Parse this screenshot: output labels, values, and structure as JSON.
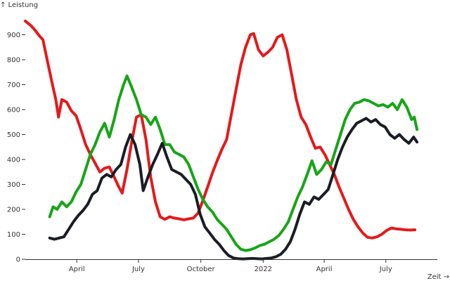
{
  "chart_data": {
    "type": "line",
    "title": "",
    "xlabel": "Zeit →",
    "ylabel": "↑ Leistung",
    "ylim": [
      0,
      1000
    ],
    "xlim": [
      "2021-01-15",
      "2022-09-15"
    ],
    "yticks": [
      0,
      100,
      200,
      300,
      400,
      500,
      600,
      700,
      800,
      900
    ],
    "xticks": [
      {
        "date": "2021-04-01",
        "label": "April"
      },
      {
        "date": "2021-07-01",
        "label": "July"
      },
      {
        "date": "2021-10-01",
        "label": "October"
      },
      {
        "date": "2022-01-01",
        "label": "2022"
      },
      {
        "date": "2022-04-01",
        "label": "April"
      },
      {
        "date": "2022-07-01",
        "label": "July"
      }
    ],
    "grid": false,
    "series": [
      {
        "color": "#e31a1c",
        "points": [
          [
            "2021-01-15",
            955
          ],
          [
            "2021-01-22",
            940
          ],
          [
            "2021-01-29",
            920
          ],
          [
            "2021-02-05",
            895
          ],
          [
            "2021-02-10",
            880
          ],
          [
            "2021-02-17",
            790
          ],
          [
            "2021-02-24",
            700
          ],
          [
            "2021-03-01",
            640
          ],
          [
            "2021-03-05",
            570
          ],
          [
            "2021-03-10",
            640
          ],
          [
            "2021-03-17",
            630
          ],
          [
            "2021-03-24",
            595
          ],
          [
            "2021-03-31",
            575
          ],
          [
            "2021-04-07",
            520
          ],
          [
            "2021-04-14",
            460
          ],
          [
            "2021-04-21",
            420
          ],
          [
            "2021-04-28",
            385
          ],
          [
            "2021-05-05",
            350
          ],
          [
            "2021-05-12",
            365
          ],
          [
            "2021-05-19",
            370
          ],
          [
            "2021-05-26",
            330
          ],
          [
            "2021-06-02",
            290
          ],
          [
            "2021-06-07",
            265
          ],
          [
            "2021-06-14",
            360
          ],
          [
            "2021-06-21",
            470
          ],
          [
            "2021-06-28",
            570
          ],
          [
            "2021-07-05",
            580
          ],
          [
            "2021-07-12",
            480
          ],
          [
            "2021-07-19",
            330
          ],
          [
            "2021-07-26",
            230
          ],
          [
            "2021-08-02",
            170
          ],
          [
            "2021-08-09",
            160
          ],
          [
            "2021-08-16",
            170
          ],
          [
            "2021-08-23",
            165
          ],
          [
            "2021-08-30",
            162
          ],
          [
            "2021-09-06",
            158
          ],
          [
            "2021-09-13",
            162
          ],
          [
            "2021-09-20",
            165
          ],
          [
            "2021-09-27",
            185
          ],
          [
            "2021-10-04",
            235
          ],
          [
            "2021-10-11",
            290
          ],
          [
            "2021-10-18",
            345
          ],
          [
            "2021-10-25",
            395
          ],
          [
            "2021-11-01",
            440
          ],
          [
            "2021-11-08",
            480
          ],
          [
            "2021-11-15",
            580
          ],
          [
            "2021-11-22",
            680
          ],
          [
            "2021-11-29",
            780
          ],
          [
            "2021-12-06",
            850
          ],
          [
            "2021-12-13",
            900
          ],
          [
            "2021-12-18",
            905
          ],
          [
            "2021-12-25",
            840
          ],
          [
            "2022-01-01",
            815
          ],
          [
            "2022-01-08",
            830
          ],
          [
            "2022-01-15",
            850
          ],
          [
            "2022-01-22",
            890
          ],
          [
            "2022-01-29",
            900
          ],
          [
            "2022-02-05",
            840
          ],
          [
            "2022-02-12",
            740
          ],
          [
            "2022-02-19",
            640
          ],
          [
            "2022-02-26",
            570
          ],
          [
            "2022-03-05",
            540
          ],
          [
            "2022-03-12",
            490
          ],
          [
            "2022-03-19",
            445
          ],
          [
            "2022-03-26",
            450
          ],
          [
            "2022-04-02",
            420
          ],
          [
            "2022-04-09",
            380
          ],
          [
            "2022-04-16",
            340
          ],
          [
            "2022-04-23",
            290
          ],
          [
            "2022-04-30",
            245
          ],
          [
            "2022-05-07",
            200
          ],
          [
            "2022-05-14",
            160
          ],
          [
            "2022-05-21",
            130
          ],
          [
            "2022-05-28",
            105
          ],
          [
            "2022-06-04",
            88
          ],
          [
            "2022-06-11",
            85
          ],
          [
            "2022-06-18",
            90
          ],
          [
            "2022-06-25",
            100
          ],
          [
            "2022-07-02",
            115
          ],
          [
            "2022-07-09",
            125
          ],
          [
            "2022-07-16",
            122
          ],
          [
            "2022-07-23",
            120
          ],
          [
            "2022-07-30",
            118
          ],
          [
            "2022-08-06",
            117
          ],
          [
            "2022-08-13",
            118
          ]
        ]
      },
      {
        "color": "#18a518",
        "points": [
          [
            "2021-02-20",
            170
          ],
          [
            "2021-02-25",
            210
          ],
          [
            "2021-03-03",
            200
          ],
          [
            "2021-03-10",
            230
          ],
          [
            "2021-03-17",
            210
          ],
          [
            "2021-03-24",
            230
          ],
          [
            "2021-03-31",
            270
          ],
          [
            "2021-04-07",
            300
          ],
          [
            "2021-04-14",
            360
          ],
          [
            "2021-04-21",
            420
          ],
          [
            "2021-04-28",
            460
          ],
          [
            "2021-05-05",
            510
          ],
          [
            "2021-05-12",
            545
          ],
          [
            "2021-05-19",
            490
          ],
          [
            "2021-05-26",
            560
          ],
          [
            "2021-06-02",
            640
          ],
          [
            "2021-06-09",
            700
          ],
          [
            "2021-06-14",
            735
          ],
          [
            "2021-06-21",
            690
          ],
          [
            "2021-06-28",
            640
          ],
          [
            "2021-07-05",
            580
          ],
          [
            "2021-07-12",
            570
          ],
          [
            "2021-07-19",
            540
          ],
          [
            "2021-07-26",
            570
          ],
          [
            "2021-08-02",
            520
          ],
          [
            "2021-08-09",
            460
          ],
          [
            "2021-08-16",
            460
          ],
          [
            "2021-08-23",
            430
          ],
          [
            "2021-08-30",
            420
          ],
          [
            "2021-09-06",
            410
          ],
          [
            "2021-09-13",
            380
          ],
          [
            "2021-09-20",
            330
          ],
          [
            "2021-09-27",
            280
          ],
          [
            "2021-10-04",
            240
          ],
          [
            "2021-10-11",
            210
          ],
          [
            "2021-10-18",
            190
          ],
          [
            "2021-10-25",
            160
          ],
          [
            "2021-11-01",
            140
          ],
          [
            "2021-11-08",
            120
          ],
          [
            "2021-11-15",
            90
          ],
          [
            "2021-11-22",
            60
          ],
          [
            "2021-11-29",
            40
          ],
          [
            "2021-12-06",
            35
          ],
          [
            "2021-12-13",
            38
          ],
          [
            "2021-12-20",
            45
          ],
          [
            "2021-12-27",
            55
          ],
          [
            "2022-01-03",
            60
          ],
          [
            "2022-01-10",
            70
          ],
          [
            "2022-01-17",
            80
          ],
          [
            "2022-01-24",
            95
          ],
          [
            "2022-01-31",
            120
          ],
          [
            "2022-02-07",
            150
          ],
          [
            "2022-02-14",
            200
          ],
          [
            "2022-02-21",
            250
          ],
          [
            "2022-02-28",
            290
          ],
          [
            "2022-03-07",
            340
          ],
          [
            "2022-03-14",
            395
          ],
          [
            "2022-03-21",
            340
          ],
          [
            "2022-03-28",
            360
          ],
          [
            "2022-04-04",
            390
          ],
          [
            "2022-04-11",
            380
          ],
          [
            "2022-04-18",
            440
          ],
          [
            "2022-04-25",
            500
          ],
          [
            "2022-05-02",
            560
          ],
          [
            "2022-05-09",
            600
          ],
          [
            "2022-05-16",
            625
          ],
          [
            "2022-05-23",
            630
          ],
          [
            "2022-05-30",
            640
          ],
          [
            "2022-06-06",
            635
          ],
          [
            "2022-06-13",
            625
          ],
          [
            "2022-06-20",
            615
          ],
          [
            "2022-06-27",
            620
          ],
          [
            "2022-07-04",
            610
          ],
          [
            "2022-07-11",
            625
          ],
          [
            "2022-07-18",
            600
          ],
          [
            "2022-07-25",
            640
          ],
          [
            "2022-08-01",
            610
          ],
          [
            "2022-08-08",
            560
          ],
          [
            "2022-08-12",
            570
          ],
          [
            "2022-08-16",
            520
          ]
        ]
      },
      {
        "color": "#1a1d24",
        "points": [
          [
            "2021-02-20",
            85
          ],
          [
            "2021-02-27",
            80
          ],
          [
            "2021-03-06",
            85
          ],
          [
            "2021-03-13",
            90
          ],
          [
            "2021-03-20",
            120
          ],
          [
            "2021-03-27",
            150
          ],
          [
            "2021-04-03",
            175
          ],
          [
            "2021-04-10",
            195
          ],
          [
            "2021-04-17",
            220
          ],
          [
            "2021-04-24",
            260
          ],
          [
            "2021-05-01",
            275
          ],
          [
            "2021-05-08",
            325
          ],
          [
            "2021-05-15",
            340
          ],
          [
            "2021-05-22",
            330
          ],
          [
            "2021-05-29",
            360
          ],
          [
            "2021-06-05",
            380
          ],
          [
            "2021-06-12",
            450
          ],
          [
            "2021-06-19",
            500
          ],
          [
            "2021-06-26",
            460
          ],
          [
            "2021-07-03",
            380
          ],
          [
            "2021-07-08",
            275
          ],
          [
            "2021-07-15",
            330
          ],
          [
            "2021-07-22",
            380
          ],
          [
            "2021-07-29",
            420
          ],
          [
            "2021-08-05",
            465
          ],
          [
            "2021-08-12",
            410
          ],
          [
            "2021-08-19",
            360
          ],
          [
            "2021-08-26",
            350
          ],
          [
            "2021-09-02",
            340
          ],
          [
            "2021-09-09",
            320
          ],
          [
            "2021-09-16",
            300
          ],
          [
            "2021-09-23",
            260
          ],
          [
            "2021-09-30",
            180
          ],
          [
            "2021-10-07",
            130
          ],
          [
            "2021-10-14",
            105
          ],
          [
            "2021-10-21",
            80
          ],
          [
            "2021-10-28",
            60
          ],
          [
            "2021-11-04",
            35
          ],
          [
            "2021-11-11",
            15
          ],
          [
            "2021-11-18",
            5
          ],
          [
            "2021-11-25",
            2
          ],
          [
            "2021-12-02",
            1
          ],
          [
            "2021-12-09",
            2
          ],
          [
            "2021-12-16",
            3
          ],
          [
            "2021-12-23",
            2
          ],
          [
            "2021-12-30",
            1
          ],
          [
            "2022-01-06",
            3
          ],
          [
            "2022-01-13",
            5
          ],
          [
            "2022-01-20",
            10
          ],
          [
            "2022-01-27",
            20
          ],
          [
            "2022-02-03",
            40
          ],
          [
            "2022-02-10",
            70
          ],
          [
            "2022-02-17",
            120
          ],
          [
            "2022-02-24",
            180
          ],
          [
            "2022-03-03",
            230
          ],
          [
            "2022-03-10",
            220
          ],
          [
            "2022-03-17",
            250
          ],
          [
            "2022-03-24",
            240
          ],
          [
            "2022-03-31",
            260
          ],
          [
            "2022-04-07",
            280
          ],
          [
            "2022-04-14",
            340
          ],
          [
            "2022-04-21",
            400
          ],
          [
            "2022-04-28",
            450
          ],
          [
            "2022-05-05",
            490
          ],
          [
            "2022-05-12",
            520
          ],
          [
            "2022-05-19",
            545
          ],
          [
            "2022-05-26",
            555
          ],
          [
            "2022-06-02",
            565
          ],
          [
            "2022-06-09",
            550
          ],
          [
            "2022-06-16",
            560
          ],
          [
            "2022-06-23",
            540
          ],
          [
            "2022-06-30",
            530
          ],
          [
            "2022-07-07",
            500
          ],
          [
            "2022-07-14",
            485
          ],
          [
            "2022-07-21",
            500
          ],
          [
            "2022-07-28",
            480
          ],
          [
            "2022-08-04",
            465
          ],
          [
            "2022-08-11",
            490
          ],
          [
            "2022-08-16",
            470
          ]
        ]
      }
    ]
  }
}
